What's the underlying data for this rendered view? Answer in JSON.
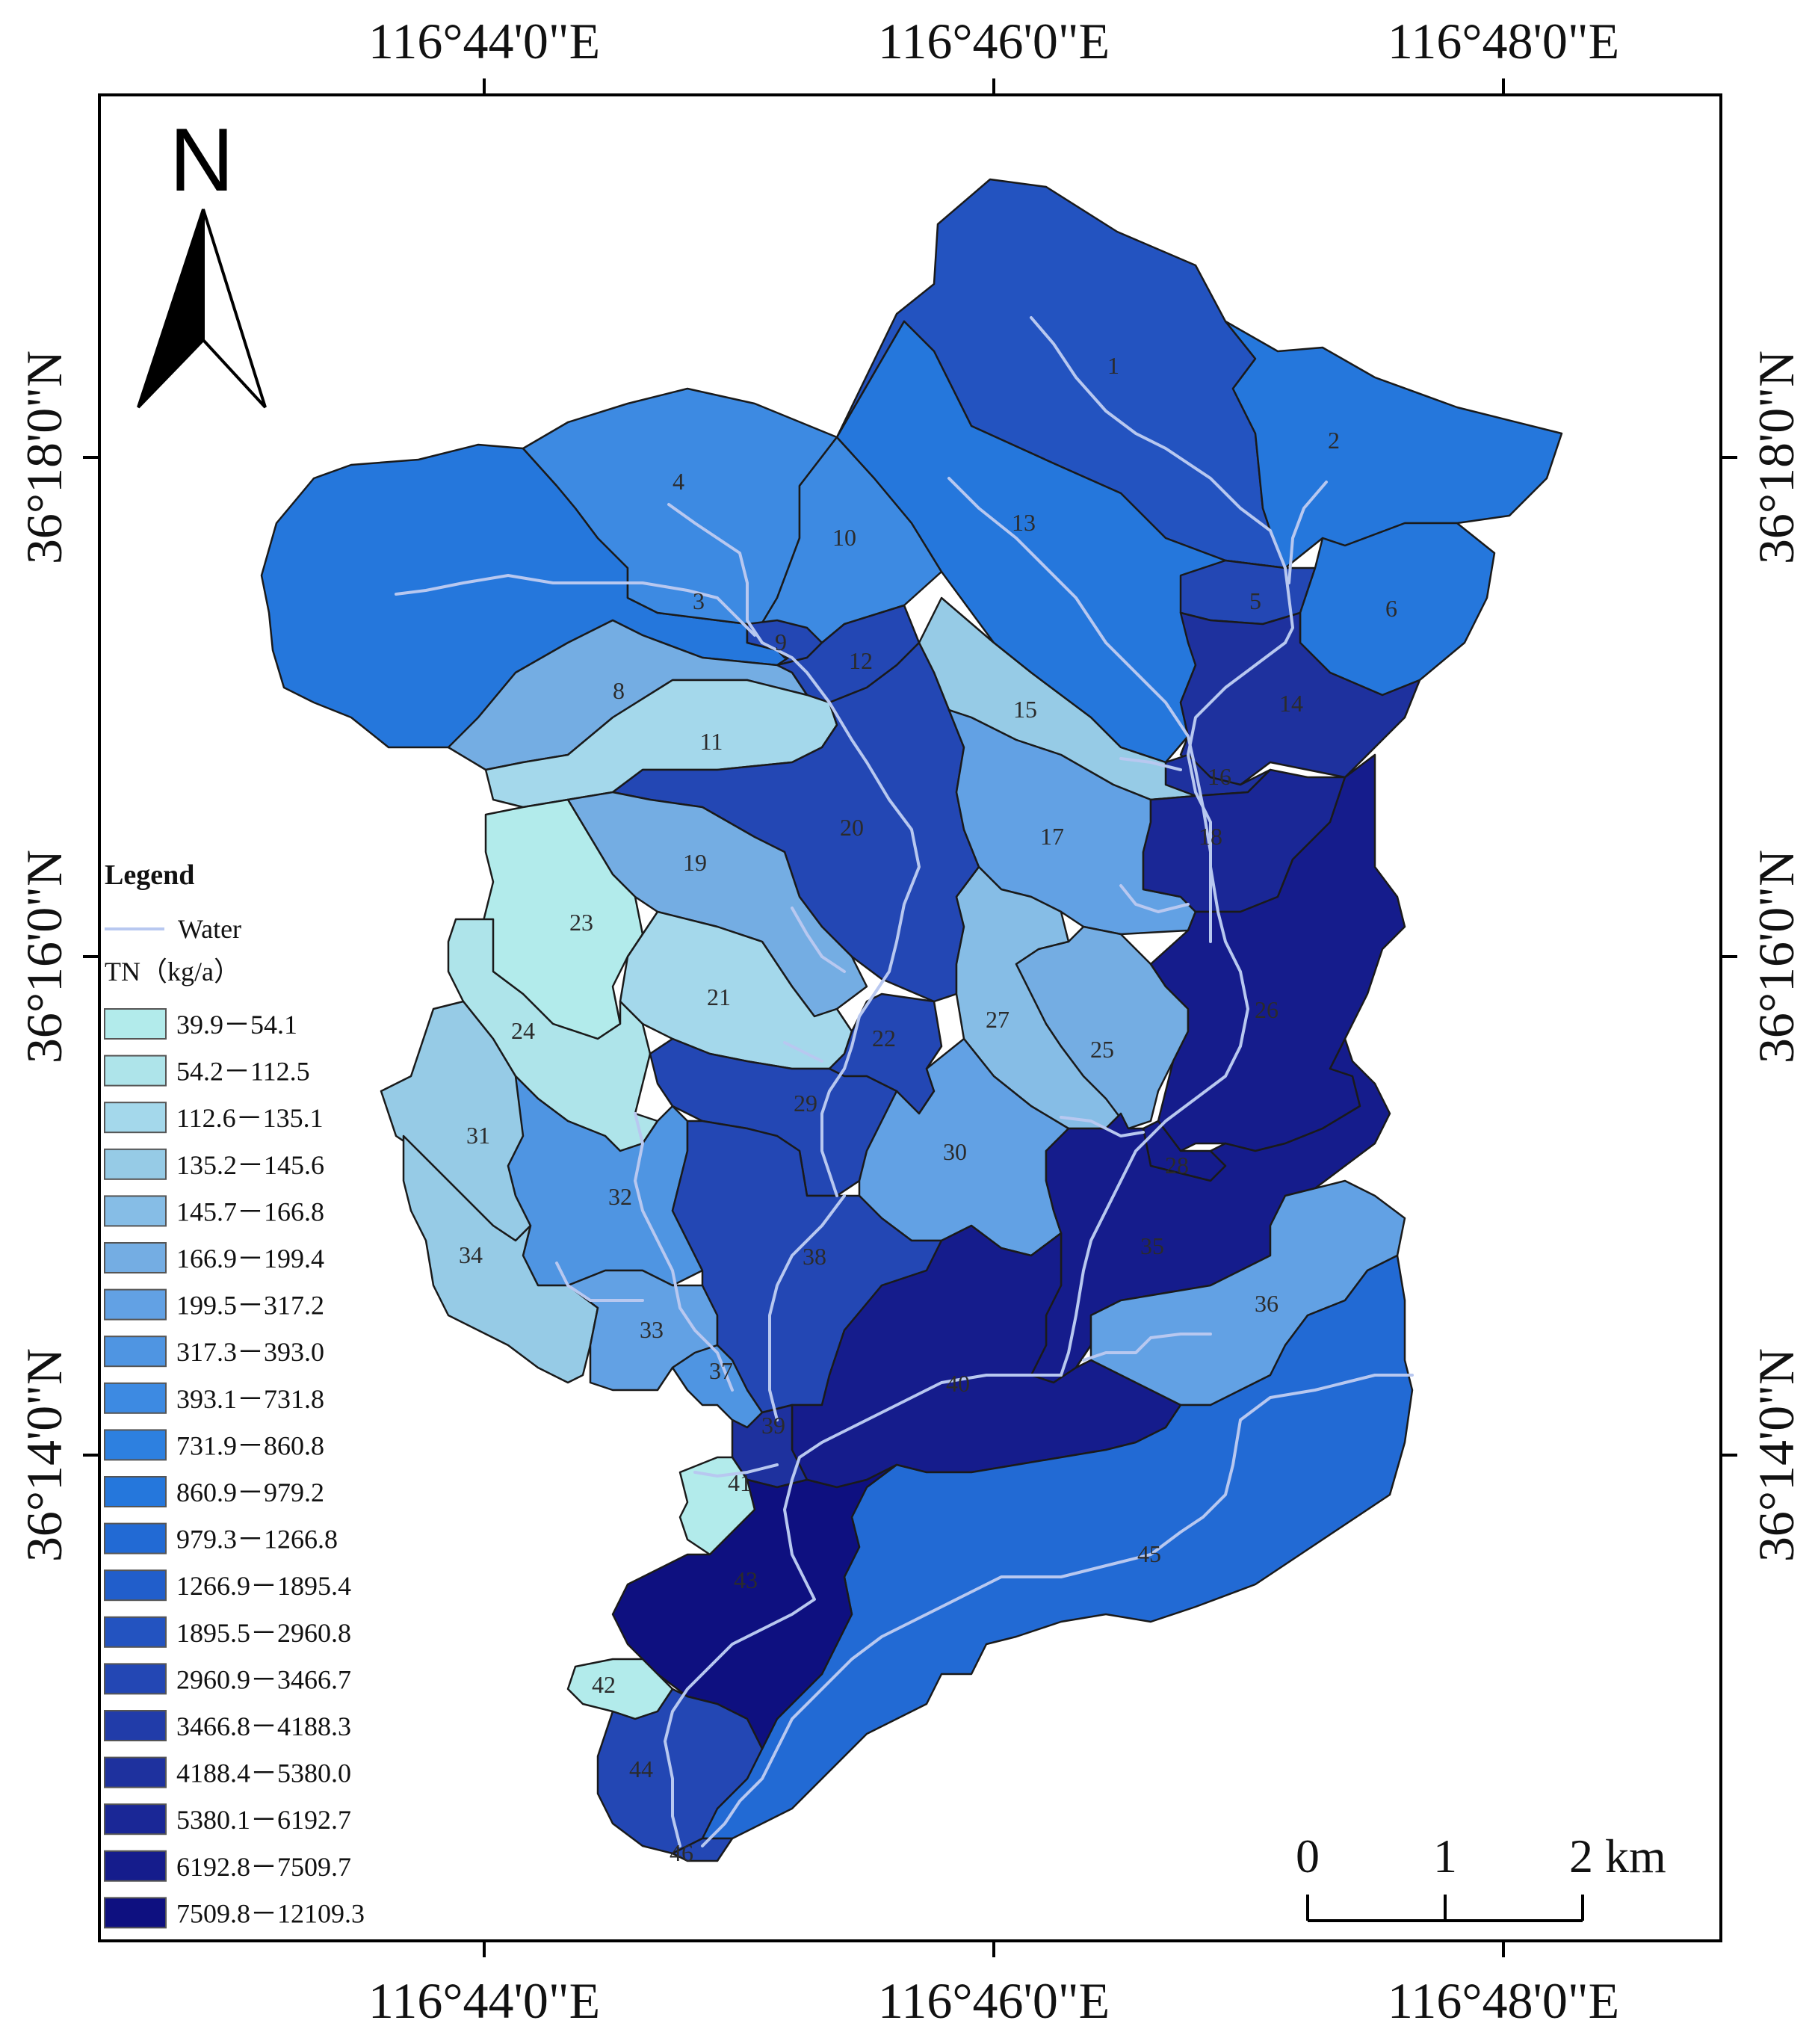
{
  "map": {
    "north_label": "N",
    "top_ticks": [
      "116°44'0\"E",
      "116°46'0\"E",
      "116°48'0\"E"
    ],
    "bottom_ticks": [
      "116°44'0\"E",
      "116°46'0\"E",
      "116°48'0\"E"
    ],
    "left_ticks": [
      "36°18'0\"N",
      "36°16'0\"N",
      "36°14'0\"N"
    ],
    "right_ticks": [
      "36°18'0\"N",
      "36°16'0\"N",
      "36°14'0\"N"
    ],
    "frame_color": "#000000",
    "water_color": "#b8c8f0",
    "outline_color": "#1a1a1a"
  },
  "legend": {
    "title": "Legend",
    "water_label": "Water",
    "tn_label": "TN（kg/a）",
    "classes": [
      {
        "range": "39.9－54.1",
        "color": "#b2ebeb"
      },
      {
        "range": "54.2－112.5",
        "color": "#aee4ea"
      },
      {
        "range": "112.6－135.1",
        "color": "#a4d8eb"
      },
      {
        "range": "135.2－145.6",
        "color": "#96cbe6"
      },
      {
        "range": "145.7－166.8",
        "color": "#86bde6"
      },
      {
        "range": "166.9－199.4",
        "color": "#74ade3"
      },
      {
        "range": "199.5－317.2",
        "color": "#62a1e4"
      },
      {
        "range": "317.3－393.0",
        "color": "#4f95e2"
      },
      {
        "range": "393.1－731.8",
        "color": "#3d8ae2"
      },
      {
        "range": "731.9－860.8",
        "color": "#2d80e0"
      },
      {
        "range": "860.9－979.2",
        "color": "#2577dc"
      },
      {
        "range": "979.3－1266.8",
        "color": "#226ad4"
      },
      {
        "range": "1266.9－1895.4",
        "color": "#215ecb"
      },
      {
        "range": "1895.5－2960.8",
        "color": "#2353c0"
      },
      {
        "range": "2960.9－3466.7",
        "color": "#2347b4"
      },
      {
        "range": "3466.8－4188.3",
        "color": "#213ca9"
      },
      {
        "range": "4188.4－5380.0",
        "color": "#1e319e"
      },
      {
        "range": "5380.1－6192.7",
        "color": "#1a2796"
      },
      {
        "range": "6192.8－7509.7",
        "color": "#151c8c"
      },
      {
        "range": "7509.8－12109.3",
        "color": "#0e1080"
      }
    ]
  },
  "scale_bar": {
    "labels": [
      "0",
      "1",
      "2 km"
    ]
  },
  "basins": [
    {
      "id": "1",
      "color": "#2353c0"
    },
    {
      "id": "2",
      "color": "#2577dc"
    },
    {
      "id": "3",
      "color": "#2577dc"
    },
    {
      "id": "4",
      "color": "#3d8ae2"
    },
    {
      "id": "5",
      "color": "#2347b4"
    },
    {
      "id": "6",
      "color": "#2577dc"
    },
    {
      "id": "8",
      "color": "#74ade3"
    },
    {
      "id": "9",
      "color": "#2347b4"
    },
    {
      "id": "10",
      "color": "#3d8ae2"
    },
    {
      "id": "11",
      "color": "#a4d8eb"
    },
    {
      "id": "12",
      "color": "#2347b4"
    },
    {
      "id": "13",
      "color": "#2577dc"
    },
    {
      "id": "14",
      "color": "#1e319e"
    },
    {
      "id": "15",
      "color": "#96cbe6"
    },
    {
      "id": "16",
      "color": "#1e319e"
    },
    {
      "id": "17",
      "color": "#62a1e4"
    },
    {
      "id": "18",
      "color": "#1a2796"
    },
    {
      "id": "19",
      "color": "#74ade3"
    },
    {
      "id": "20",
      "color": "#2347b4"
    },
    {
      "id": "21",
      "color": "#a4d8eb"
    },
    {
      "id": "22",
      "color": "#2347b4"
    },
    {
      "id": "23",
      "color": "#b2ebeb"
    },
    {
      "id": "24",
      "color": "#aee4ea"
    },
    {
      "id": "25",
      "color": "#74ade3"
    },
    {
      "id": "26",
      "color": "#151c8c"
    },
    {
      "id": "27",
      "color": "#86bde6"
    },
    {
      "id": "28",
      "color": "#151c8c"
    },
    {
      "id": "29",
      "color": "#2347b4"
    },
    {
      "id": "30",
      "color": "#62a1e4"
    },
    {
      "id": "31",
      "color": "#96cbe6"
    },
    {
      "id": "32",
      "color": "#4f95e2"
    },
    {
      "id": "33",
      "color": "#62a1e4"
    },
    {
      "id": "34",
      "color": "#96cbe6"
    },
    {
      "id": "35",
      "color": "#151c8c"
    },
    {
      "id": "36",
      "color": "#62a1e4"
    },
    {
      "id": "37",
      "color": "#4f95e2"
    },
    {
      "id": "38",
      "color": "#2347b4"
    },
    {
      "id": "39",
      "color": "#1e319e"
    },
    {
      "id": "40",
      "color": "#151c8c"
    },
    {
      "id": "41",
      "color": "#b2ebeb"
    },
    {
      "id": "42",
      "color": "#b2ebeb"
    },
    {
      "id": "43",
      "color": "#0e1080"
    },
    {
      "id": "44",
      "color": "#2347b4"
    },
    {
      "id": "45",
      "color": "#226ad4"
    },
    {
      "id": "46",
      "color": "#2347b4"
    }
  ]
}
